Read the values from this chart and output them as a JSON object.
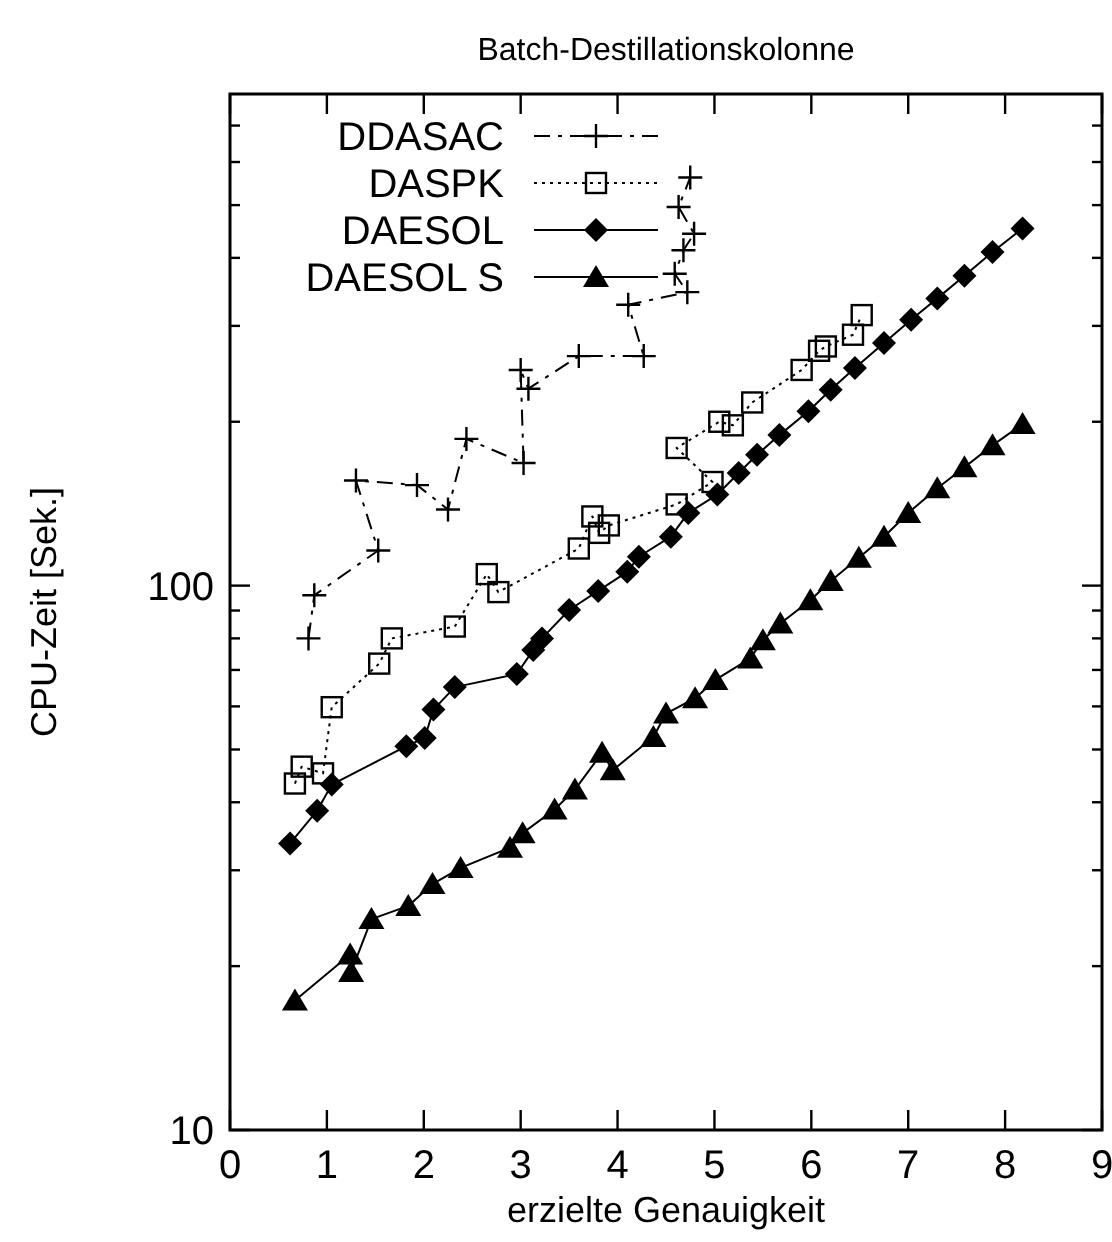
{
  "chart_data": {
    "type": "line",
    "title": "Batch-Destillationskolonne",
    "xlabel": "erzielte Genauigkeit",
    "ylabel": "CPU-Zeit [Sek.]",
    "log": "y",
    "xlim": [
      0,
      9
    ],
    "xticks": [
      0,
      1,
      2,
      3,
      4,
      5,
      6,
      7,
      8,
      9
    ],
    "ylim": [
      10,
      800
    ],
    "yticks": [
      10,
      {
        "value": 20,
        "label": null
      },
      {
        "value": 30,
        "label": null
      },
      {
        "value": 40,
        "label": null
      },
      {
        "value": 50,
        "label": null
      },
      {
        "value": 60,
        "label": null
      },
      {
        "value": 70,
        "label": null
      },
      {
        "value": 80,
        "label": null
      },
      {
        "value": 90,
        "label": null
      },
      100,
      {
        "value": 200,
        "label": null
      },
      {
        "value": 300,
        "label": null
      },
      {
        "value": 400,
        "label": null
      },
      {
        "value": 500,
        "label": null
      },
      {
        "value": 600,
        "label": null
      },
      {
        "value": 700,
        "label": null
      }
    ],
    "grid": false,
    "legend": "top left",
    "series": [
      {
        "name": "DDASAC",
        "color": "#000000",
        "marker": "cross",
        "line_style": "dashed",
        "x": [
          0.81,
          0.87,
          1.53,
          1.3,
          1.93,
          2.25,
          2.44,
          3.03,
          3.0,
          3.08,
          3.6,
          4.27,
          4.11,
          4.72,
          4.59,
          4.68,
          4.79,
          4.63,
          4.75
        ],
        "values": [
          80,
          96,
          116,
          156,
          153,
          138,
          186,
          168,
          249,
          230,
          264,
          264,
          328,
          346,
          374,
          413,
          443,
          496,
          562
        ]
      },
      {
        "name": "DASPK",
        "color": "#000000",
        "marker": "square",
        "line_style": "dotted",
        "x": [
          0.67,
          0.74,
          0.96,
          1.05,
          1.54,
          1.67,
          2.32,
          2.65,
          2.77,
          3.6,
          3.74,
          3.81,
          3.91,
          4.61,
          4.98,
          4.61,
          5.05,
          5.19,
          5.39,
          5.9,
          6.08,
          6.15,
          6.43,
          6.52
        ],
        "values": [
          43.3,
          46.5,
          45.2,
          59.8,
          71.9,
          80,
          84.1,
          105,
          97.3,
          117,
          134,
          125,
          129,
          141,
          155,
          179,
          200,
          197,
          217,
          249,
          270,
          275,
          289,
          314
        ]
      },
      {
        "name": "DAESOL",
        "color": "#000000",
        "marker": "diamond",
        "line_style": "solid",
        "x": [
          0.62,
          0.9,
          1.05,
          1.82,
          2.01,
          2.1,
          2.32,
          2.96,
          3.13,
          3.22,
          3.5,
          3.8,
          4.1,
          4.22,
          4.55,
          4.73,
          5.03,
          5.25,
          5.44,
          5.67,
          5.97,
          6.2,
          6.45,
          6.75,
          7.03,
          7.3,
          7.58,
          7.87,
          8.18
        ],
        "values": [
          33.6,
          38.6,
          43.1,
          50.7,
          52.5,
          59.2,
          65.1,
          68.8,
          76.2,
          80,
          90.2,
          97.8,
          106,
          113,
          123,
          136,
          147,
          161,
          174,
          189,
          209,
          229,
          251,
          279,
          308,
          337,
          371,
          410,
          453
        ]
      },
      {
        "name": "DAESOL S",
        "color": "#000000",
        "marker": "triangle",
        "line_style": "solid",
        "x": [
          0.67,
          1.24,
          1.25,
          1.46,
          1.84,
          2.09,
          2.38,
          2.89,
          3.02,
          3.35,
          3.56,
          3.84,
          3.95,
          4.37,
          4.5,
          4.8,
          5.01,
          5.37,
          5.5,
          5.68,
          5.99,
          6.2,
          6.49,
          6.75,
          7.0,
          7.3,
          7.58,
          7.87,
          8.18
        ],
        "values": [
          17.3,
          21.0,
          19.5,
          24.4,
          25.8,
          28.3,
          30.3,
          33.0,
          35.1,
          38.8,
          42.2,
          49.3,
          45.8,
          52.7,
          58.2,
          62.1,
          67.1,
          73.5,
          79.4,
          85.2,
          94.0,
          102,
          112.5,
          123,
          136,
          151,
          165,
          181,
          198
        ]
      }
    ]
  }
}
